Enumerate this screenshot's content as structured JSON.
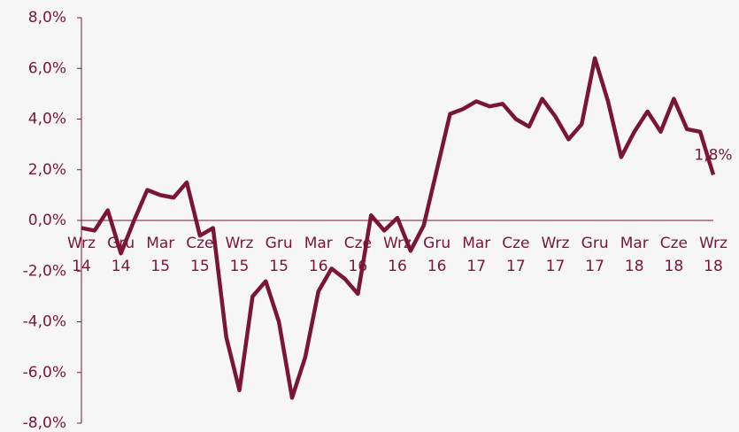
{
  "chart_data": {
    "type": "line",
    "categories": [
      "Wrz 14",
      null,
      null,
      "Gru 14",
      null,
      null,
      "Mar 15",
      null,
      null,
      "Cze 15",
      null,
      null,
      "Wrz 15",
      null,
      null,
      "Gru 15",
      null,
      null,
      "Mar 16",
      null,
      null,
      "Cze 16",
      null,
      null,
      "Wrz 16",
      null,
      null,
      "Gru 16",
      null,
      null,
      "Mar 17",
      null,
      null,
      "Cze 17",
      null,
      null,
      "Wrz 17",
      null,
      null,
      "Gru 17",
      null,
      null,
      "Mar 18",
      null,
      null,
      "Cze 18",
      null,
      null,
      "Wrz 18"
    ],
    "series": [
      {
        "name": null,
        "color": "#7b1538",
        "values": [
          -0.3,
          -0.4,
          0.4,
          -1.3,
          0.0,
          1.2,
          1.0,
          0.9,
          1.5,
          -0.6,
          -0.3,
          -4.6,
          -6.7,
          -3.0,
          -2.4,
          -4.0,
          -7.0,
          -5.4,
          -2.8,
          -1.9,
          -2.3,
          -2.9,
          0.2,
          -0.4,
          0.1,
          -1.2,
          -0.2,
          2.0,
          4.2,
          4.4,
          4.7,
          4.5,
          4.6,
          4.0,
          3.7,
          4.8,
          4.1,
          3.2,
          3.8,
          6.4,
          4.7,
          2.5,
          3.5,
          4.3,
          3.5,
          4.8,
          3.6,
          3.5,
          1.8
        ],
        "value_labels": [
          null,
          null,
          null,
          null,
          null,
          null,
          null,
          null,
          null,
          null,
          null,
          null,
          null,
          null,
          null,
          null,
          null,
          null,
          null,
          null,
          null,
          null,
          null,
          null,
          null,
          null,
          null,
          null,
          null,
          null,
          null,
          null,
          null,
          null,
          null,
          null,
          null,
          null,
          null,
          null,
          null,
          null,
          null,
          null,
          null,
          null,
          null,
          null,
          "1,8%"
        ]
      }
    ],
    "ylim": [
      -8,
      8
    ],
    "yticks": [
      {
        "value": -8,
        "label": "-8,0%"
      },
      {
        "value": -6,
        "label": "-6,0%"
      },
      {
        "value": -4,
        "label": "-4,0%"
      },
      {
        "value": -2,
        "label": "-2,0%"
      },
      {
        "value": 0,
        "label": "0,0%"
      },
      {
        "value": 2,
        "label": "2,0%"
      },
      {
        "value": 4,
        "label": "4,0%"
      },
      {
        "value": 6,
        "label": "6,0%"
      },
      {
        "value": 8,
        "label": "8,0%"
      }
    ]
  }
}
